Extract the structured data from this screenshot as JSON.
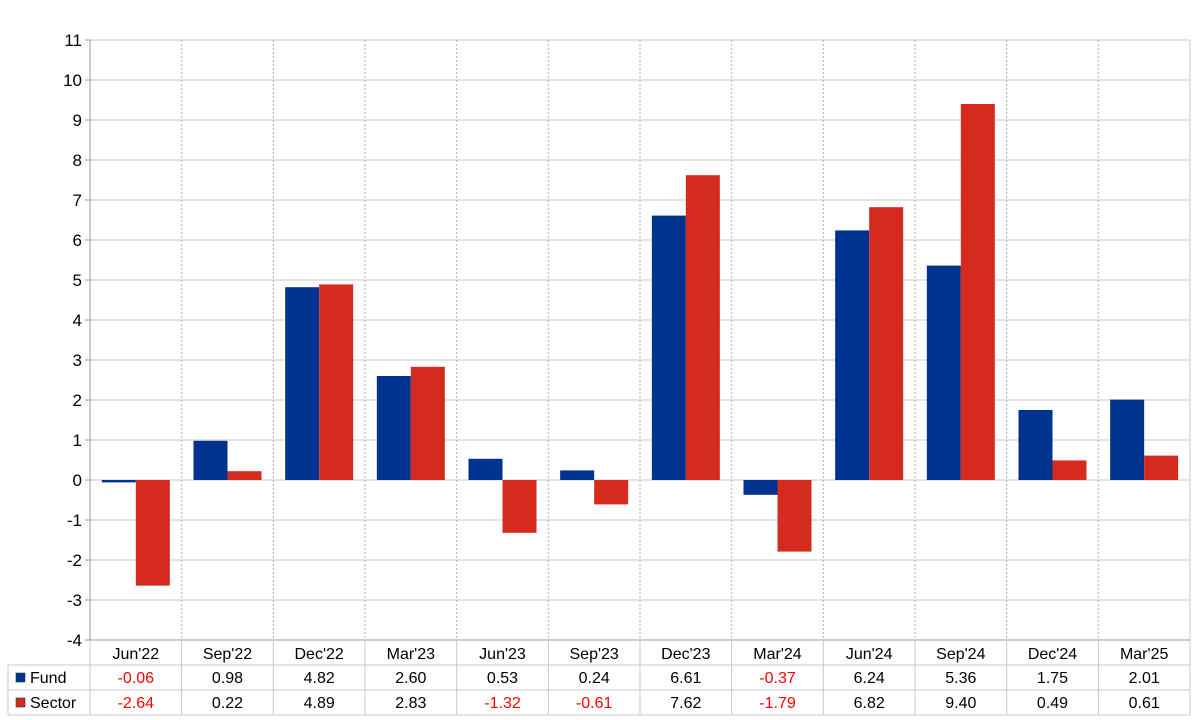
{
  "chart_data": {
    "type": "bar",
    "categories": [
      "Jun'22",
      "Sep'22",
      "Dec'22",
      "Mar'23",
      "Jun'23",
      "Sep'23",
      "Dec'23",
      "Mar'24",
      "Jun'24",
      "Sep'24",
      "Dec'24",
      "Mar'25"
    ],
    "series": [
      {
        "name": "Fund",
        "color": "#00338d",
        "values": [
          -0.06,
          0.98,
          4.82,
          2.6,
          0.53,
          0.24,
          6.61,
          -0.37,
          6.24,
          5.36,
          1.75,
          2.01
        ],
        "labels": [
          "-0.06",
          "0.98",
          "4.82",
          "2.60",
          "0.53",
          "0.24",
          "6.61",
          "-0.37",
          "6.24",
          "5.36",
          "1.75",
          "2.01"
        ]
      },
      {
        "name": "Sector",
        "color": "#d52b1e",
        "values": [
          -2.64,
          0.22,
          4.89,
          2.83,
          -1.32,
          -0.61,
          7.62,
          -1.79,
          6.82,
          9.4,
          0.49,
          0.61
        ],
        "labels": [
          "-2.64",
          "0.22",
          "4.89",
          "2.83",
          "-1.32",
          "-0.61",
          "7.62",
          "-1.79",
          "6.82",
          "9.40",
          "0.49",
          "0.61"
        ]
      }
    ],
    "ylim": [
      -4,
      11
    ],
    "yticks": [
      "11",
      "10",
      "9",
      "8",
      "7",
      "6",
      "5",
      "4",
      "3",
      "2",
      "1",
      "0",
      "-1",
      "-2",
      "-3",
      "-4"
    ],
    "grid": true,
    "legend": "data table rows",
    "negative_color": "#ff0000"
  }
}
